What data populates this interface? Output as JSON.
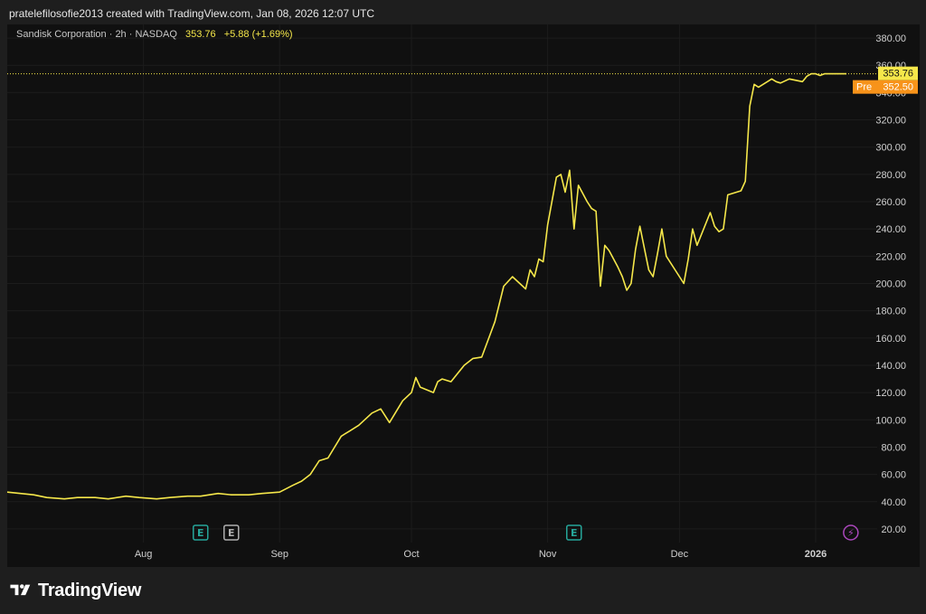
{
  "header": {
    "caption": "pratelefilosofie2013 created with TradingView.com, Jan 08, 2026 12:07 UTC"
  },
  "legend": {
    "symbol": "Sandisk Corporation · 2h · NASDAQ",
    "last": "353.76",
    "change": "+5.88 (+1.69%)"
  },
  "colors": {
    "line": "#f5e74a",
    "pre_badge": "#f7931a",
    "last_badge": "#f5e74a",
    "bg": "#101010",
    "frame": "#1e1e1e"
  },
  "events": [
    {
      "icon": "earnings-icon",
      "label": "E",
      "date": "2025-08-14",
      "color": "#26a69a"
    },
    {
      "icon": "event-icon",
      "label": "E",
      "date": "2025-08-21",
      "color": "#b0b0b0"
    },
    {
      "icon": "earnings-icon",
      "label": "E",
      "date": "2025-11-07",
      "color": "#26a69a"
    },
    {
      "icon": "flash-icon",
      "label": "⚡",
      "date": "2026-01-09",
      "color": "#ab47bc"
    }
  ],
  "brand": {
    "name": "TradingView",
    "icon": "tradingview-logo-icon"
  },
  "chart_data": {
    "type": "line",
    "ylim": [
      10,
      390
    ],
    "xlim": [
      "2025-07-01",
      "2026-01-15"
    ],
    "y_ticks": [
      "20.00",
      "40.00",
      "60.00",
      "80.00",
      "100.00",
      "120.00",
      "140.00",
      "160.00",
      "180.00",
      "200.00",
      "220.00",
      "240.00",
      "260.00",
      "280.00",
      "300.00",
      "320.00",
      "340.00",
      "360.00",
      "380.00"
    ],
    "x_tick_labels": [
      {
        "label": "Aug",
        "date": "2025-08-01"
      },
      {
        "label": "Sep",
        "date": "2025-09-01"
      },
      {
        "label": "Oct",
        "date": "2025-10-01"
      },
      {
        "label": "Nov",
        "date": "2025-11-01"
      },
      {
        "label": "Dec",
        "date": "2025-12-01"
      },
      {
        "label": "2026",
        "date": "2026-01-01",
        "bold": true
      }
    ],
    "last_price": {
      "label": "353.76",
      "value": 353.76
    },
    "pre_price": {
      "tag": "Pre",
      "label": "352.50",
      "value": 352.5
    },
    "series": [
      {
        "x": [
          "2025-07-01",
          "2025-07-04",
          "2025-07-07",
          "2025-07-10",
          "2025-07-14",
          "2025-07-17",
          "2025-07-21",
          "2025-07-24",
          "2025-07-28",
          "2025-07-31",
          "2025-08-04",
          "2025-08-07",
          "2025-08-11",
          "2025-08-14",
          "2025-08-18",
          "2025-08-21",
          "2025-08-25",
          "2025-08-28",
          "2025-09-01",
          "2025-09-04",
          "2025-09-06",
          "2025-09-08",
          "2025-09-10",
          "2025-09-12",
          "2025-09-15",
          "2025-09-17",
          "2025-09-19",
          "2025-09-22",
          "2025-09-24",
          "2025-09-26",
          "2025-09-29",
          "2025-10-01",
          "2025-10-02",
          "2025-10-03",
          "2025-10-06",
          "2025-10-07",
          "2025-10-08",
          "2025-10-10",
          "2025-10-13",
          "2025-10-15",
          "2025-10-17",
          "2025-10-20",
          "2025-10-22",
          "2025-10-24",
          "2025-10-27",
          "2025-10-28",
          "2025-10-29",
          "2025-10-30",
          "2025-10-31",
          "2025-11-01",
          "2025-11-03",
          "2025-11-04",
          "2025-11-05",
          "2025-11-06",
          "2025-11-07",
          "2025-11-08",
          "2025-11-10",
          "2025-11-11",
          "2025-11-12",
          "2025-11-13",
          "2025-11-14",
          "2025-11-15",
          "2025-11-17",
          "2025-11-18",
          "2025-11-19",
          "2025-11-20",
          "2025-11-21",
          "2025-11-22",
          "2025-11-24",
          "2025-11-25",
          "2025-11-26",
          "2025-11-27",
          "2025-11-28",
          "2025-12-01",
          "2025-12-02",
          "2025-12-03",
          "2025-12-04",
          "2025-12-05",
          "2025-12-08",
          "2025-12-09",
          "2025-12-10",
          "2025-12-11",
          "2025-12-12",
          "2025-12-15",
          "2025-12-16",
          "2025-12-17",
          "2025-12-18",
          "2025-12-19",
          "2025-12-22",
          "2025-12-23",
          "2025-12-24",
          "2025-12-26",
          "2025-12-29",
          "2025-12-30",
          "2025-12-31",
          "2026-01-01",
          "2026-01-02",
          "2026-01-03",
          "2026-01-05",
          "2026-01-06",
          "2026-01-07",
          "2026-01-08"
        ],
        "y": [
          47,
          46,
          45,
          43,
          42,
          43,
          43,
          42,
          44,
          43,
          42,
          43,
          44,
          44,
          46,
          45,
          45,
          46,
          47,
          52,
          55,
          60,
          70,
          72,
          88,
          92,
          96,
          105,
          108,
          98,
          114,
          120,
          131,
          124,
          120,
          128,
          130,
          128,
          140,
          145,
          146,
          172,
          198,
          205,
          196,
          210,
          205,
          218,
          216,
          243,
          278,
          280,
          267,
          283,
          240,
          272,
          260,
          255,
          253,
          198,
          228,
          224,
          212,
          205,
          195,
          200,
          225,
          242,
          210,
          205,
          222,
          240,
          220,
          205,
          200,
          218,
          240,
          228,
          252,
          242,
          238,
          240,
          265,
          268,
          275,
          330,
          346,
          344,
          350,
          348,
          347,
          350,
          348,
          352,
          353.76,
          353.76,
          352.5,
          353.76,
          353.76,
          353.76,
          353.76,
          353.76
        ]
      }
    ]
  }
}
